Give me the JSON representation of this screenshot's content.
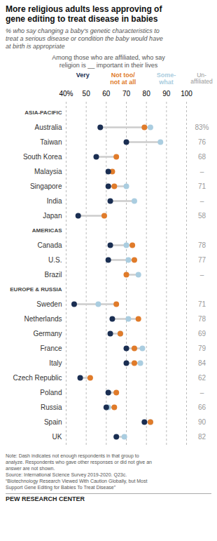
{
  "chart_data": {
    "type": "dot",
    "title": "More religious adults less approving of\ngene editing to treat disease in babies",
    "subtitle": "% who say changing a baby's genetic characteristics to\ntreat a serious disease or condition the baby would have\nat birth is appropriate",
    "header_note": "Among those who are affiliated, who say\nreligion is __ important in their lives",
    "groups": [
      {
        "name": "ASIA-PACIFIC",
        "categories": [
          "Australia",
          "Taiwan",
          "South Korea",
          "Malaysia",
          "Singapore",
          "India",
          "Japan"
        ]
      },
      {
        "name": "AMERICAS",
        "categories": [
          "Canada",
          "U.S.",
          "Brazil"
        ]
      },
      {
        "name": "EUROPE & RUSSIA",
        "categories": [
          "Sweden",
          "Netherlands",
          "Germany",
          "France",
          "Italy",
          "Czech Republic",
          "Poland",
          "Russia",
          "Spain",
          "UK"
        ]
      }
    ],
    "series": [
      {
        "name": "Very",
        "color": "#1a2e52",
        "values": [
          57,
          70,
          55,
          61,
          61,
          62,
          46,
          62,
          61,
          null,
          44,
          63,
          62,
          70,
          70,
          47,
          61,
          60,
          79,
          65
        ]
      },
      {
        "name": "Not too/\nnot at all",
        "color": "#e07b2a",
        "values": [
          79,
          null,
          65,
          63,
          64,
          null,
          59,
          73,
          74,
          70,
          65,
          76,
          67,
          74,
          74,
          52,
          65,
          64,
          82,
          null
        ]
      },
      {
        "name": "Some-\nwhat",
        "color": "#aacde0",
        "values": [
          82,
          87,
          null,
          null,
          70,
          74,
          null,
          70,
          71,
          76,
          56,
          71,
          67,
          78,
          77,
          null,
          61,
          61,
          82,
          69
        ]
      }
    ],
    "unaffiliated": {
      "name": "Un-\naffiliated",
      "values": [
        83,
        76,
        68,
        null,
        71,
        null,
        58,
        78,
        77,
        null,
        71,
        78,
        69,
        79,
        84,
        62,
        null,
        66,
        90,
        82
      ],
      "value_labels": [
        "83%",
        "76",
        "68",
        "–",
        "71",
        "–",
        "58",
        "78",
        "77",
        "–",
        "71",
        "78",
        "69",
        "79",
        "84",
        "62",
        "–",
        "66",
        "90",
        "82"
      ]
    },
    "xlim": [
      40,
      100
    ],
    "xticks": [
      {
        "value": 40,
        "label": "40%"
      },
      50,
      60,
      70,
      80,
      90,
      100
    ],
    "grid": true,
    "note": "Note: Dash indicates not enough respondents in that group to\nanalyze. Respondents who gave other responses or did not give an\nanswer are not shown.\nSource: International Science Survey 2019-2020. Q23c.\n“Biotechnology Research Viewed With Caution Globally, but Most\nSupport Gene Editing for Babies To Treat Disease”",
    "footer": "PEW RESEARCH CENTER"
  }
}
